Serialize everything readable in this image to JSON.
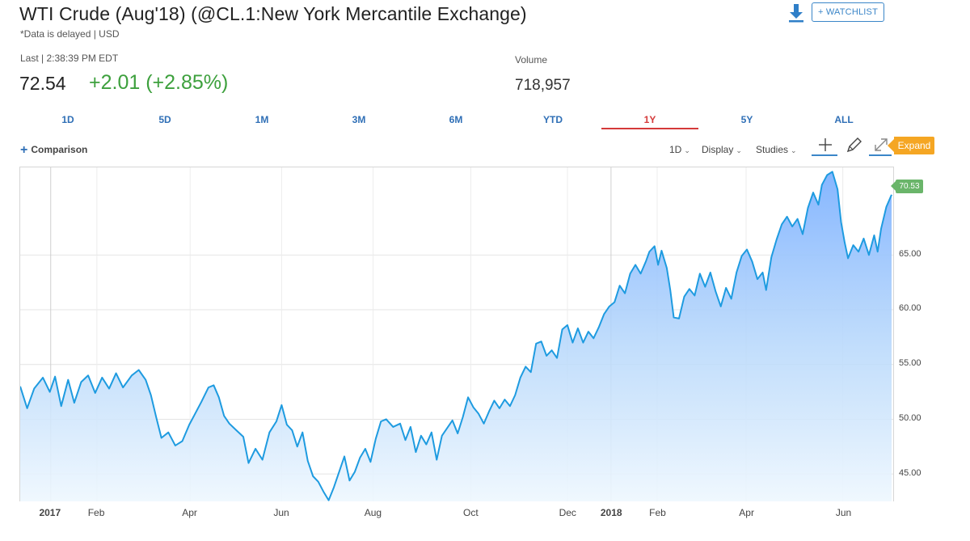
{
  "header": {
    "title": "WTI Crude (Aug'18) (@CL.1:New York Mercantile Exchange)",
    "subtitle": "*Data is delayed | USD",
    "watchlist_label": "+ WATCHLIST",
    "download_icon": "download-icon"
  },
  "quote": {
    "last_label": "Last | 2:38:39 PM EDT",
    "price": "72.54",
    "change": "+2.01 (+2.85%)",
    "volume_label": "Volume",
    "volume_value": "718,957",
    "change_color": "#3da03d"
  },
  "range_tabs": [
    "1D",
    "5D",
    "1M",
    "3M",
    "6M",
    "YTD",
    "1Y",
    "5Y",
    "ALL"
  ],
  "active_tab": "1Y",
  "toolbar": {
    "comparison_label": "Comparison",
    "interval_label": "1D",
    "display_label": "Display",
    "studies_label": "Studies",
    "expand_label": "Expand",
    "tools": [
      "crosshair-icon",
      "pencil-icon",
      "expand-icon"
    ]
  },
  "colors": {
    "accent": "#2f6fb6",
    "line": "#1e9be0",
    "active_tab": "#d43a3a",
    "expand": "#f5a623",
    "last_badge": "#6ab56a"
  },
  "chart_data": {
    "type": "area",
    "title": "WTI Crude (Aug'18) 1Y",
    "xlabel": "",
    "ylabel": "",
    "ylim": [
      42.5,
      73
    ],
    "x_ticks": [
      {
        "label": "2017",
        "t": 0.035,
        "year": true
      },
      {
        "label": "Feb",
        "t": 0.088
      },
      {
        "label": "Apr",
        "t": 0.195
      },
      {
        "label": "Jun",
        "t": 0.3
      },
      {
        "label": "Aug",
        "t": 0.405
      },
      {
        "label": "Oct",
        "t": 0.517
      },
      {
        "label": "Dec",
        "t": 0.628
      },
      {
        "label": "2018",
        "t": 0.678,
        "year": true
      },
      {
        "label": "Feb",
        "t": 0.731
      },
      {
        "label": "Apr",
        "t": 0.833
      },
      {
        "label": "Jun",
        "t": 0.944
      }
    ],
    "y_ticks": [
      "45.00",
      "50.00",
      "55.00",
      "60.00",
      "65.00"
    ],
    "last_value": "70.53",
    "series": [
      {
        "name": "WTI Crude",
        "points": [
          [
            0.0,
            53.0
          ],
          [
            0.008,
            51.0
          ],
          [
            0.016,
            52.8
          ],
          [
            0.026,
            53.8
          ],
          [
            0.034,
            52.5
          ],
          [
            0.04,
            53.9
          ],
          [
            0.047,
            51.2
          ],
          [
            0.055,
            53.6
          ],
          [
            0.062,
            51.5
          ],
          [
            0.07,
            53.4
          ],
          [
            0.078,
            54.0
          ],
          [
            0.086,
            52.4
          ],
          [
            0.094,
            53.8
          ],
          [
            0.102,
            52.8
          ],
          [
            0.11,
            54.2
          ],
          [
            0.118,
            52.9
          ],
          [
            0.128,
            54.0
          ],
          [
            0.136,
            54.5
          ],
          [
            0.144,
            53.6
          ],
          [
            0.15,
            52.2
          ],
          [
            0.156,
            50.2
          ],
          [
            0.162,
            48.3
          ],
          [
            0.17,
            48.8
          ],
          [
            0.178,
            47.6
          ],
          [
            0.186,
            48.0
          ],
          [
            0.194,
            49.5
          ],
          [
            0.2,
            50.4
          ],
          [
            0.208,
            51.6
          ],
          [
            0.216,
            52.9
          ],
          [
            0.222,
            53.1
          ],
          [
            0.228,
            52.0
          ],
          [
            0.234,
            50.3
          ],
          [
            0.24,
            49.6
          ],
          [
            0.248,
            49.0
          ],
          [
            0.256,
            48.4
          ],
          [
            0.262,
            46.0
          ],
          [
            0.27,
            47.3
          ],
          [
            0.278,
            46.3
          ],
          [
            0.286,
            48.8
          ],
          [
            0.294,
            49.8
          ],
          [
            0.3,
            51.3
          ],
          [
            0.306,
            49.5
          ],
          [
            0.312,
            49.0
          ],
          [
            0.318,
            47.5
          ],
          [
            0.324,
            48.8
          ],
          [
            0.33,
            46.2
          ],
          [
            0.336,
            44.8
          ],
          [
            0.342,
            44.3
          ],
          [
            0.348,
            43.4
          ],
          [
            0.354,
            42.6
          ],
          [
            0.36,
            43.8
          ],
          [
            0.366,
            45.2
          ],
          [
            0.372,
            46.6
          ],
          [
            0.378,
            44.4
          ],
          [
            0.384,
            45.2
          ],
          [
            0.39,
            46.5
          ],
          [
            0.396,
            47.3
          ],
          [
            0.402,
            46.1
          ],
          [
            0.408,
            48.2
          ],
          [
            0.414,
            49.8
          ],
          [
            0.42,
            50.0
          ],
          [
            0.428,
            49.3
          ],
          [
            0.436,
            49.6
          ],
          [
            0.442,
            48.1
          ],
          [
            0.448,
            49.3
          ],
          [
            0.454,
            47.0
          ],
          [
            0.46,
            48.5
          ],
          [
            0.466,
            47.7
          ],
          [
            0.472,
            48.8
          ],
          [
            0.478,
            46.3
          ],
          [
            0.484,
            48.5
          ],
          [
            0.49,
            49.2
          ],
          [
            0.496,
            49.9
          ],
          [
            0.502,
            48.7
          ],
          [
            0.508,
            50.2
          ],
          [
            0.514,
            52.0
          ],
          [
            0.52,
            51.1
          ],
          [
            0.526,
            50.5
          ],
          [
            0.532,
            49.6
          ],
          [
            0.538,
            50.7
          ],
          [
            0.544,
            51.7
          ],
          [
            0.55,
            51.0
          ],
          [
            0.556,
            51.8
          ],
          [
            0.562,
            51.2
          ],
          [
            0.568,
            52.2
          ],
          [
            0.574,
            53.8
          ],
          [
            0.58,
            54.8
          ],
          [
            0.586,
            54.3
          ],
          [
            0.592,
            56.9
          ],
          [
            0.598,
            57.1
          ],
          [
            0.604,
            55.8
          ],
          [
            0.61,
            56.3
          ],
          [
            0.616,
            55.6
          ],
          [
            0.622,
            58.2
          ],
          [
            0.628,
            58.6
          ],
          [
            0.634,
            57.0
          ],
          [
            0.64,
            58.3
          ],
          [
            0.646,
            57.0
          ],
          [
            0.652,
            58.0
          ],
          [
            0.658,
            57.4
          ],
          [
            0.664,
            58.4
          ],
          [
            0.67,
            59.6
          ],
          [
            0.676,
            60.3
          ],
          [
            0.682,
            60.7
          ],
          [
            0.688,
            62.2
          ],
          [
            0.694,
            61.5
          ],
          [
            0.7,
            63.3
          ],
          [
            0.706,
            64.1
          ],
          [
            0.712,
            63.3
          ],
          [
            0.718,
            64.4
          ],
          [
            0.722,
            65.3
          ],
          [
            0.728,
            65.8
          ],
          [
            0.732,
            64.1
          ],
          [
            0.736,
            65.4
          ],
          [
            0.742,
            63.8
          ],
          [
            0.746,
            61.8
          ],
          [
            0.75,
            59.3
          ],
          [
            0.756,
            59.2
          ],
          [
            0.762,
            61.2
          ],
          [
            0.768,
            61.9
          ],
          [
            0.774,
            61.3
          ],
          [
            0.78,
            63.3
          ],
          [
            0.786,
            62.1
          ],
          [
            0.792,
            63.4
          ],
          [
            0.798,
            61.7
          ],
          [
            0.804,
            60.3
          ],
          [
            0.81,
            62.0
          ],
          [
            0.816,
            61.0
          ],
          [
            0.822,
            63.4
          ],
          [
            0.828,
            64.9
          ],
          [
            0.834,
            65.5
          ],
          [
            0.84,
            64.4
          ],
          [
            0.846,
            62.8
          ],
          [
            0.852,
            63.4
          ],
          [
            0.856,
            61.8
          ],
          [
            0.862,
            64.8
          ],
          [
            0.868,
            66.4
          ],
          [
            0.874,
            67.8
          ],
          [
            0.88,
            68.5
          ],
          [
            0.886,
            67.6
          ],
          [
            0.892,
            68.3
          ],
          [
            0.898,
            66.9
          ],
          [
            0.904,
            69.3
          ],
          [
            0.91,
            70.7
          ],
          [
            0.916,
            69.6
          ],
          [
            0.92,
            71.4
          ],
          [
            0.926,
            72.3
          ],
          [
            0.932,
            72.6
          ],
          [
            0.938,
            71.0
          ],
          [
            0.942,
            68.0
          ],
          [
            0.946,
            66.2
          ],
          [
            0.95,
            64.7
          ],
          [
            0.956,
            65.9
          ],
          [
            0.962,
            65.3
          ],
          [
            0.968,
            66.5
          ],
          [
            0.974,
            65.0
          ],
          [
            0.98,
            66.8
          ],
          [
            0.984,
            65.3
          ],
          [
            0.988,
            67.4
          ],
          [
            0.994,
            69.4
          ],
          [
            1.0,
            70.5
          ]
        ]
      }
    ]
  }
}
